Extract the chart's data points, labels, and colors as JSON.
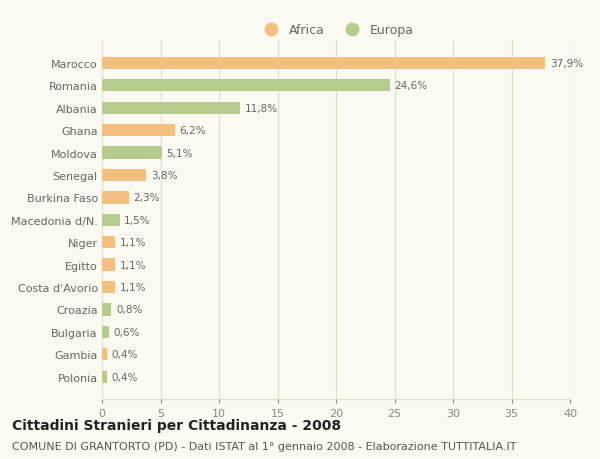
{
  "categories": [
    "Marocco",
    "Romania",
    "Albania",
    "Ghana",
    "Moldova",
    "Senegal",
    "Burkina Faso",
    "Macedonia d/N.",
    "Niger",
    "Egitto",
    "Costa d'Avorio",
    "Croazia",
    "Bulgaria",
    "Gambia",
    "Polonia"
  ],
  "values": [
    37.9,
    24.6,
    11.8,
    6.2,
    5.1,
    3.8,
    2.3,
    1.5,
    1.1,
    1.1,
    1.1,
    0.8,
    0.6,
    0.4,
    0.4
  ],
  "labels": [
    "37,9%",
    "24,6%",
    "11,8%",
    "6,2%",
    "5,1%",
    "3,8%",
    "2,3%",
    "1,5%",
    "1,1%",
    "1,1%",
    "1,1%",
    "0,8%",
    "0,6%",
    "0,4%",
    "0,4%"
  ],
  "continents": [
    "Africa",
    "Europa",
    "Europa",
    "Africa",
    "Europa",
    "Africa",
    "Africa",
    "Europa",
    "Africa",
    "Africa",
    "Africa",
    "Europa",
    "Europa",
    "Africa",
    "Europa"
  ],
  "africa_color": "#F4C080",
  "europa_color": "#B5CC8E",
  "title": "Cittadini Stranieri per Cittadinanza - 2008",
  "subtitle": "COMUNE DI GRANTORTO (PD) - Dati ISTAT al 1° gennaio 2008 - Elaborazione TUTTITALIA.IT",
  "xlim": [
    0,
    40
  ],
  "xticks": [
    0,
    5,
    10,
    15,
    20,
    25,
    30,
    35,
    40
  ],
  "background_color": "#fafaf2",
  "grid_color": "#ddddcc",
  "title_fontsize": 10,
  "subtitle_fontsize": 8,
  "bar_height": 0.55
}
